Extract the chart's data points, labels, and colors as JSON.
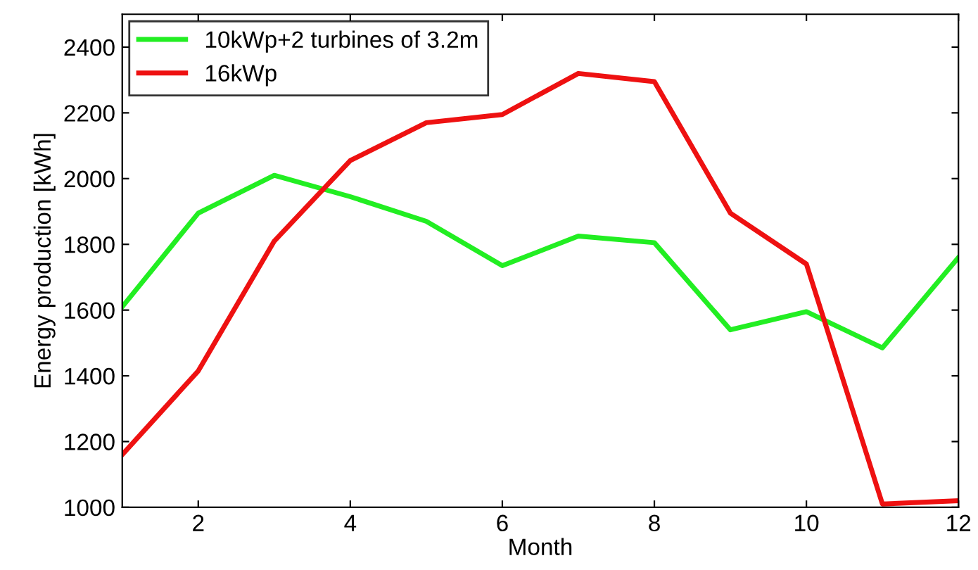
{
  "chart_data": {
    "type": "line",
    "xlabel": "Month",
    "ylabel": "Energy production [kWh]",
    "x": [
      1,
      2,
      3,
      4,
      5,
      6,
      7,
      8,
      9,
      10,
      11,
      12
    ],
    "series": [
      {
        "name": "10kWp+2 turbines of 3.2m",
        "color": "#22ee22",
        "values": [
          1610,
          1895,
          2010,
          1945,
          1870,
          1735,
          1825,
          1805,
          1540,
          1595,
          1485,
          1760
        ]
      },
      {
        "name": "16kWp",
        "color": "#ee1111",
        "values": [
          1160,
          1415,
          1810,
          2055,
          2170,
          2195,
          2320,
          2295,
          1895,
          1740,
          1010,
          1020
        ]
      }
    ],
    "xlim": [
      1,
      12
    ],
    "xticks": [
      2,
      4,
      6,
      8,
      10,
      12
    ],
    "ylim": [
      1000,
      2500
    ],
    "yticks": [
      1000,
      1200,
      1400,
      1600,
      1800,
      2000,
      2200,
      2400
    ],
    "grid": false,
    "legend": "top left",
    "marker": "none",
    "line_style": "solid"
  }
}
